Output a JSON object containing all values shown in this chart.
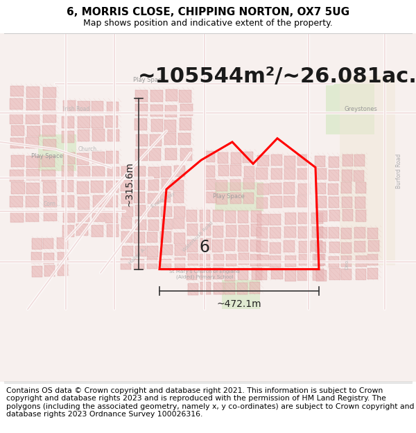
{
  "title": "6, MORRIS CLOSE, CHIPPING NORTON, OX7 5UG",
  "subtitle": "Map shows position and indicative extent of the property.",
  "area_text": "~105544m²/~26.081ac.",
  "width_label": "~472.1m",
  "height_label": "~315.6m",
  "property_label": "6",
  "footer_text": "Contains OS data © Crown copyright and database right 2021. This information is subject to Crown copyright and database rights 2023 and is reproduced with the permission of HM Land Registry. The polygons (including the associated geometry, namely x, y co-ordinates) are subject to Crown copyright and database rights 2023 Ordnance Survey 100026316.",
  "title_fontsize": 11,
  "subtitle_fontsize": 9,
  "area_fontsize": 22,
  "dim_fontsize": 10,
  "footer_fontsize": 7.8,
  "map_bg": "#f7f0ee",
  "red_color": "#ff0000",
  "dark_text": "#222222",
  "gray_text": "#888888",
  "building_color": "#e8b8b8",
  "building_edge": "#cc8888",
  "road_color": "#ffffff",
  "road_edge": "#ddaaaa",
  "green_color": "#d4e8c2",
  "tan_color": "#f0e8d8"
}
